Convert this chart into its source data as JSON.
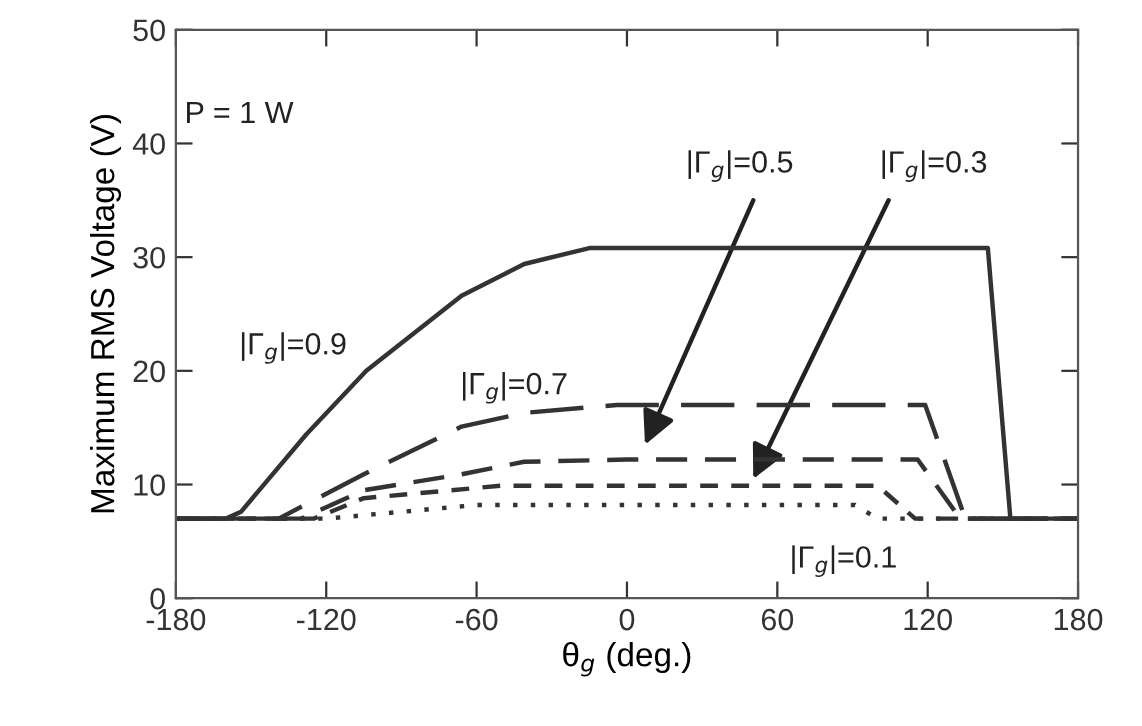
{
  "chart_data": {
    "type": "line",
    "xlabel": "θ$_{g}$ (deg.)",
    "ylabel": "Maximum RMS Voltage (V)",
    "xlim": [
      -180,
      180
    ],
    "xticks": [
      -180,
      -120,
      -60,
      0,
      60,
      120,
      180
    ],
    "ylim": [
      0,
      50
    ],
    "yticks": [
      0,
      10,
      20,
      30,
      40,
      50
    ],
    "grid": false,
    "marker": "none",
    "series": [
      {
        "color": "#333333",
        "line_style": "solid",
        "x": [
          -180,
          -160,
          -154,
          -128,
          -104,
          -66,
          -41,
          -15,
          144,
          153,
          180
        ],
        "values": [
          7,
          7,
          7.6,
          14.4,
          20,
          26.6,
          29.4,
          30.8,
          30.8,
          7,
          7
        ]
      },
      {
        "color": "#333333",
        "line_style": "dashed",
        "x": [
          -180,
          -139,
          -105,
          -66,
          -41,
          -4,
          119,
          135,
          180
        ],
        "values": [
          7,
          7,
          10.9,
          15.1,
          16.3,
          17,
          17,
          7,
          7
        ]
      },
      {
        "color": "#333333",
        "line_style": "dashed",
        "x": [
          -180,
          -130,
          -105,
          -66,
          -41,
          0,
          116,
          133,
          180
        ],
        "values": [
          7,
          7,
          9.5,
          10.9,
          12,
          12.2,
          12.2,
          7,
          7
        ]
      },
      {
        "color": "#333333",
        "line_style": "dashed",
        "x": [
          -180,
          -125,
          -105,
          -50,
          100,
          115,
          180
        ],
        "values": [
          7,
          7,
          8.8,
          9.9,
          9.9,
          7,
          7
        ]
      },
      {
        "color": "#333333",
        "line_style": "dotted",
        "x": [
          -180,
          -120,
          -60,
          91,
          100,
          180
        ],
        "values": [
          7,
          7,
          8.2,
          8.2,
          7,
          7
        ]
      }
    ],
    "annotations": [
      "P = 1 W",
      "|Γ$_{g}$|=0.9",
      "|Γ$_{g}$|=0.7",
      "|Γ$_{g}$|=0.5",
      "|Γ$_{g}$|=0.3",
      "|Γ$_{g}$|=0.1"
    ]
  }
}
